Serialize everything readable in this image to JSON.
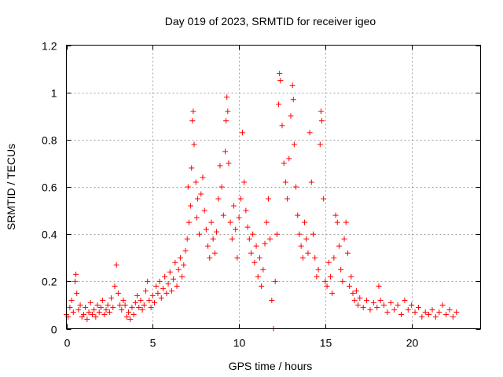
{
  "chart_data": {
    "type": "scatter",
    "title": "Day 019 of 2023, SRMTID for receiver igeo",
    "xlabel": "GPS time / hours",
    "ylabel": "SRMTID / TECUs",
    "xlim": [
      0,
      24
    ],
    "ylim": [
      0,
      1.2
    ],
    "xticks": [
      0,
      5,
      10,
      15,
      20
    ],
    "xtick_labels": [
      "0",
      "5",
      "10",
      "15",
      "20"
    ],
    "yticks": [
      0,
      0.2,
      0.4,
      0.6,
      0.8,
      1,
      1.2
    ],
    "ytick_labels": [
      "0",
      "0.2",
      "0.4",
      "0.6",
      "0.8",
      "1",
      "1.2"
    ],
    "grid": true,
    "marker": "+",
    "marker_color": "#ff0000",
    "series": [
      {
        "name": "SRMTID",
        "points": [
          [
            0.0,
            0.06
          ],
          [
            0.1,
            0.05
          ],
          [
            0.2,
            0.09
          ],
          [
            0.3,
            0.12
          ],
          [
            0.4,
            0.07
          ],
          [
            0.5,
            0.2
          ],
          [
            0.55,
            0.23
          ],
          [
            0.6,
            0.15
          ],
          [
            0.7,
            0.08
          ],
          [
            0.8,
            0.1
          ],
          [
            0.9,
            0.05
          ],
          [
            1.0,
            0.06
          ],
          [
            1.1,
            0.09
          ],
          [
            1.2,
            0.04
          ],
          [
            1.3,
            0.07
          ],
          [
            1.4,
            0.11
          ],
          [
            1.5,
            0.06
          ],
          [
            1.6,
            0.08
          ],
          [
            1.7,
            0.05
          ],
          [
            1.8,
            0.1
          ],
          [
            1.9,
            0.07
          ],
          [
            2.0,
            0.09
          ],
          [
            2.1,
            0.12
          ],
          [
            2.2,
            0.06
          ],
          [
            2.3,
            0.08
          ],
          [
            2.4,
            0.1
          ],
          [
            2.5,
            0.07
          ],
          [
            2.6,
            0.13
          ],
          [
            2.7,
            0.09
          ],
          [
            2.8,
            0.18
          ],
          [
            2.9,
            0.27
          ],
          [
            3.0,
            0.15
          ],
          [
            3.1,
            0.1
          ],
          [
            3.2,
            0.08
          ],
          [
            3.3,
            0.12
          ],
          [
            3.4,
            0.1
          ],
          [
            3.5,
            0.05
          ],
          [
            3.6,
            0.07
          ],
          [
            3.7,
            0.04
          ],
          [
            3.8,
            0.09
          ],
          [
            3.9,
            0.06
          ],
          [
            4.0,
            0.11
          ],
          [
            4.1,
            0.14
          ],
          [
            4.2,
            0.09
          ],
          [
            4.3,
            0.12
          ],
          [
            4.4,
            0.08
          ],
          [
            4.5,
            0.1
          ],
          [
            4.6,
            0.16
          ],
          [
            4.7,
            0.2
          ],
          [
            4.8,
            0.12
          ],
          [
            4.9,
            0.09
          ],
          [
            5.0,
            0.14
          ],
          [
            5.1,
            0.11
          ],
          [
            5.2,
            0.18
          ],
          [
            5.3,
            0.15
          ],
          [
            5.4,
            0.2
          ],
          [
            5.5,
            0.13
          ],
          [
            5.6,
            0.17
          ],
          [
            5.7,
            0.22
          ],
          [
            5.8,
            0.15
          ],
          [
            5.9,
            0.19
          ],
          [
            6.0,
            0.24
          ],
          [
            6.1,
            0.16
          ],
          [
            6.2,
            0.21
          ],
          [
            6.3,
            0.28
          ],
          [
            6.4,
            0.18
          ],
          [
            6.5,
            0.25
          ],
          [
            6.6,
            0.3
          ],
          [
            6.7,
            0.22
          ],
          [
            6.8,
            0.27
          ],
          [
            6.9,
            0.33
          ],
          [
            7.0,
            0.38
          ],
          [
            7.05,
            0.6
          ],
          [
            7.1,
            0.45
          ],
          [
            7.2,
            0.52
          ],
          [
            7.25,
            0.68
          ],
          [
            7.3,
            0.88
          ],
          [
            7.35,
            0.92
          ],
          [
            7.4,
            0.78
          ],
          [
            7.5,
            0.62
          ],
          [
            7.55,
            0.47
          ],
          [
            7.6,
            0.55
          ],
          [
            7.7,
            0.4
          ],
          [
            7.8,
            0.57
          ],
          [
            7.9,
            0.64
          ],
          [
            8.0,
            0.5
          ],
          [
            8.1,
            0.42
          ],
          [
            8.2,
            0.35
          ],
          [
            8.3,
            0.3
          ],
          [
            8.4,
            0.45
          ],
          [
            8.5,
            0.38
          ],
          [
            8.6,
            0.32
          ],
          [
            8.7,
            0.41
          ],
          [
            8.8,
            0.55
          ],
          [
            8.9,
            0.69
          ],
          [
            9.0,
            0.6
          ],
          [
            9.1,
            0.48
          ],
          [
            9.2,
            0.75
          ],
          [
            9.25,
            0.88
          ],
          [
            9.3,
            0.98
          ],
          [
            9.35,
            0.92
          ],
          [
            9.4,
            0.7
          ],
          [
            9.5,
            0.45
          ],
          [
            9.6,
            0.38
          ],
          [
            9.7,
            0.52
          ],
          [
            9.8,
            0.42
          ],
          [
            9.9,
            0.3
          ],
          [
            10.0,
            0.47
          ],
          [
            10.1,
            0.55
          ],
          [
            10.2,
            0.83
          ],
          [
            10.3,
            0.62
          ],
          [
            10.4,
            0.5
          ],
          [
            10.5,
            0.43
          ],
          [
            10.6,
            0.38
          ],
          [
            10.7,
            0.32
          ],
          [
            10.8,
            0.4
          ],
          [
            10.9,
            0.28
          ],
          [
            11.0,
            0.35
          ],
          [
            11.1,
            0.22
          ],
          [
            11.2,
            0.3
          ],
          [
            11.3,
            0.18
          ],
          [
            11.4,
            0.25
          ],
          [
            11.5,
            0.36
          ],
          [
            11.6,
            0.45
          ],
          [
            11.7,
            0.55
          ],
          [
            11.8,
            0.38
          ],
          [
            11.9,
            0.12
          ],
          [
            12.0,
            0.0
          ],
          [
            12.1,
            0.2
          ],
          [
            12.2,
            0.4
          ],
          [
            12.3,
            0.95
          ],
          [
            12.35,
            1.08
          ],
          [
            12.4,
            1.05
          ],
          [
            12.5,
            0.86
          ],
          [
            12.6,
            0.7
          ],
          [
            12.7,
            0.62
          ],
          [
            12.8,
            0.55
          ],
          [
            12.9,
            0.72
          ],
          [
            13.0,
            0.9
          ],
          [
            13.1,
            1.03
          ],
          [
            13.15,
            0.97
          ],
          [
            13.2,
            0.78
          ],
          [
            13.3,
            0.6
          ],
          [
            13.4,
            0.48
          ],
          [
            13.5,
            0.4
          ],
          [
            13.6,
            0.35
          ],
          [
            13.7,
            0.3
          ],
          [
            13.8,
            0.45
          ],
          [
            13.9,
            0.38
          ],
          [
            14.0,
            0.32
          ],
          [
            14.1,
            0.83
          ],
          [
            14.2,
            0.62
          ],
          [
            14.3,
            0.4
          ],
          [
            14.4,
            0.3
          ],
          [
            14.5,
            0.22
          ],
          [
            14.6,
            0.25
          ],
          [
            14.7,
            0.78
          ],
          [
            14.75,
            0.92
          ],
          [
            14.8,
            0.88
          ],
          [
            14.9,
            0.55
          ],
          [
            15.0,
            0.2
          ],
          [
            15.1,
            0.18
          ],
          [
            15.2,
            0.28
          ],
          [
            15.3,
            0.22
          ],
          [
            15.4,
            0.15
          ],
          [
            15.5,
            0.3
          ],
          [
            15.6,
            0.48
          ],
          [
            15.7,
            0.45
          ],
          [
            15.8,
            0.35
          ],
          [
            15.9,
            0.25
          ],
          [
            16.0,
            0.2
          ],
          [
            16.1,
            0.38
          ],
          [
            16.2,
            0.45
          ],
          [
            16.3,
            0.32
          ],
          [
            16.4,
            0.18
          ],
          [
            16.5,
            0.22
          ],
          [
            16.6,
            0.15
          ],
          [
            16.7,
            0.12
          ],
          [
            16.8,
            0.16
          ],
          [
            16.9,
            0.1
          ],
          [
            17.0,
            0.13
          ],
          [
            17.2,
            0.09
          ],
          [
            17.4,
            0.12
          ],
          [
            17.6,
            0.08
          ],
          [
            17.8,
            0.11
          ],
          [
            18.0,
            0.09
          ],
          [
            18.1,
            0.18
          ],
          [
            18.2,
            0.12
          ],
          [
            18.4,
            0.1
          ],
          [
            18.6,
            0.07
          ],
          [
            18.8,
            0.11
          ],
          [
            19.0,
            0.08
          ],
          [
            19.2,
            0.1
          ],
          [
            19.4,
            0.06
          ],
          [
            19.6,
            0.12
          ],
          [
            19.8,
            0.08
          ],
          [
            20.0,
            0.1
          ],
          [
            20.2,
            0.07
          ],
          [
            20.4,
            0.09
          ],
          [
            20.6,
            0.05
          ],
          [
            20.8,
            0.07
          ],
          [
            21.0,
            0.06
          ],
          [
            21.2,
            0.08
          ],
          [
            21.4,
            0.05
          ],
          [
            21.6,
            0.07
          ],
          [
            21.8,
            0.1
          ],
          [
            22.0,
            0.06
          ],
          [
            22.2,
            0.08
          ],
          [
            22.4,
            0.05
          ],
          [
            22.6,
            0.07
          ]
        ]
      }
    ]
  }
}
